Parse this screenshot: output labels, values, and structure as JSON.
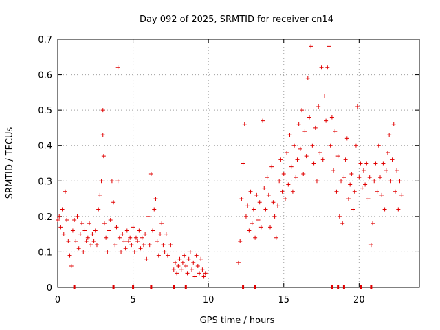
{
  "chart_data": {
    "type": "scatter",
    "title": "Day 092 of 2025, SRMTID for receiver cn14",
    "xlabel": "GPS time / hours",
    "ylabel": "SRMTID / TECUs",
    "xlim": [
      0,
      24
    ],
    "ylim": [
      0,
      0.7
    ],
    "xticks": [
      0,
      5,
      10,
      15,
      20
    ],
    "yticks": [
      0,
      0.1,
      0.2,
      0.3,
      0.4,
      0.5,
      0.6,
      0.7
    ],
    "xtick_labels": [
      "0",
      "5",
      "10",
      "15",
      "20"
    ],
    "ytick_labels": [
      "0",
      "0.1",
      "0.2",
      "0.3",
      "0.4",
      "0.5",
      "0.6",
      "0.7"
    ],
    "grid": true,
    "marker": "+",
    "color": "#e00000",
    "zero_markers_x": [
      1.1,
      3.7,
      5.0,
      6.2,
      7.7,
      8.5,
      12.3,
      13.1,
      18.2,
      18.6,
      19.0,
      20.1,
      20.8
    ],
    "series": [
      {
        "name": "SRMTID",
        "points": [
          [
            0.0,
            0.19
          ],
          [
            0.1,
            0.2
          ],
          [
            0.2,
            0.17
          ],
          [
            0.3,
            0.22
          ],
          [
            0.4,
            0.15
          ],
          [
            0.5,
            0.27
          ],
          [
            0.6,
            0.19
          ],
          [
            0.7,
            0.13
          ],
          [
            0.8,
            0.09
          ],
          [
            0.9,
            0.06
          ],
          [
            1.0,
            0.16
          ],
          [
            1.1,
            0.19
          ],
          [
            1.2,
            0.13
          ],
          [
            1.3,
            0.2
          ],
          [
            1.4,
            0.11
          ],
          [
            1.5,
            0.15
          ],
          [
            1.6,
            0.18
          ],
          [
            1.7,
            0.1
          ],
          [
            1.8,
            0.16
          ],
          [
            1.9,
            0.13
          ],
          [
            2.0,
            0.14
          ],
          [
            2.1,
            0.18
          ],
          [
            2.2,
            0.12
          ],
          [
            2.3,
            0.15
          ],
          [
            2.4,
            0.13
          ],
          [
            2.5,
            0.16
          ],
          [
            2.6,
            0.12
          ],
          [
            2.7,
            0.22
          ],
          [
            2.8,
            0.26
          ],
          [
            2.9,
            0.3
          ],
          [
            3.0,
            0.5
          ],
          [
            3.0,
            0.43
          ],
          [
            3.05,
            0.37
          ],
          [
            3.1,
            0.18
          ],
          [
            3.2,
            0.14
          ],
          [
            3.3,
            0.1
          ],
          [
            3.4,
            0.16
          ],
          [
            3.5,
            0.19
          ],
          [
            3.6,
            0.3
          ],
          [
            3.7,
            0.24
          ],
          [
            3.8,
            0.12
          ],
          [
            3.9,
            0.17
          ],
          [
            4.0,
            0.3
          ],
          [
            4.0,
            0.62
          ],
          [
            4.1,
            0.14
          ],
          [
            4.2,
            0.1
          ],
          [
            4.3,
            0.15
          ],
          [
            4.4,
            0.13
          ],
          [
            4.5,
            0.11
          ],
          [
            4.6,
            0.16
          ],
          [
            4.7,
            0.13
          ],
          [
            4.8,
            0.14
          ],
          [
            4.9,
            0.12
          ],
          [
            5.0,
            0.17
          ],
          [
            5.1,
            0.1
          ],
          [
            5.2,
            0.14
          ],
          [
            5.3,
            0.13
          ],
          [
            5.4,
            0.16
          ],
          [
            5.5,
            0.11
          ],
          [
            5.6,
            0.14
          ],
          [
            5.7,
            0.12
          ],
          [
            5.8,
            0.15
          ],
          [
            5.9,
            0.08
          ],
          [
            6.0,
            0.2
          ],
          [
            6.1,
            0.12
          ],
          [
            6.2,
            0.32
          ],
          [
            6.3,
            0.16
          ],
          [
            6.4,
            0.22
          ],
          [
            6.5,
            0.25
          ],
          [
            6.6,
            0.13
          ],
          [
            6.7,
            0.09
          ],
          [
            6.8,
            0.15
          ],
          [
            6.9,
            0.18
          ],
          [
            7.0,
            0.12
          ],
          [
            7.1,
            0.1
          ],
          [
            7.2,
            0.15
          ],
          [
            7.3,
            0.09
          ],
          [
            7.5,
            0.12
          ],
          [
            7.7,
            0.05
          ],
          [
            7.8,
            0.07
          ],
          [
            7.9,
            0.04
          ],
          [
            8.0,
            0.06
          ],
          [
            8.1,
            0.08
          ],
          [
            8.2,
            0.05
          ],
          [
            8.3,
            0.07
          ],
          [
            8.4,
            0.09
          ],
          [
            8.5,
            0.06
          ],
          [
            8.6,
            0.04
          ],
          [
            8.7,
            0.08
          ],
          [
            8.8,
            0.1
          ],
          [
            8.9,
            0.05
          ],
          [
            9.0,
            0.07
          ],
          [
            9.1,
            0.03
          ],
          [
            9.2,
            0.09
          ],
          [
            9.3,
            0.06
          ],
          [
            9.4,
            0.04
          ],
          [
            9.5,
            0.08
          ],
          [
            9.6,
            0.05
          ],
          [
            9.7,
            0.03
          ],
          [
            9.8,
            0.04
          ],
          [
            12.0,
            0.07
          ],
          [
            12.1,
            0.13
          ],
          [
            12.2,
            0.25
          ],
          [
            12.3,
            0.35
          ],
          [
            12.4,
            0.46
          ],
          [
            12.5,
            0.2
          ],
          [
            12.6,
            0.23
          ],
          [
            12.7,
            0.16
          ],
          [
            12.8,
            0.27
          ],
          [
            12.9,
            0.18
          ],
          [
            13.0,
            0.22
          ],
          [
            13.1,
            0.14
          ],
          [
            13.2,
            0.26
          ],
          [
            13.3,
            0.19
          ],
          [
            13.4,
            0.24
          ],
          [
            13.5,
            0.17
          ],
          [
            13.6,
            0.47
          ],
          [
            13.7,
            0.28
          ],
          [
            13.8,
            0.22
          ],
          [
            13.9,
            0.31
          ],
          [
            14.0,
            0.26
          ],
          [
            14.1,
            0.17
          ],
          [
            14.2,
            0.34
          ],
          [
            14.3,
            0.24
          ],
          [
            14.4,
            0.2
          ],
          [
            14.5,
            0.14
          ],
          [
            14.6,
            0.23
          ],
          [
            14.7,
            0.3
          ],
          [
            14.8,
            0.36
          ],
          [
            14.9,
            0.27
          ],
          [
            15.0,
            0.32
          ],
          [
            15.1,
            0.25
          ],
          [
            15.2,
            0.38
          ],
          [
            15.3,
            0.29
          ],
          [
            15.4,
            0.43
          ],
          [
            15.5,
            0.34
          ],
          [
            15.6,
            0.27
          ],
          [
            15.7,
            0.4
          ],
          [
            15.8,
            0.31
          ],
          [
            15.9,
            0.36
          ],
          [
            16.0,
            0.46
          ],
          [
            16.1,
            0.39
          ],
          [
            16.2,
            0.5
          ],
          [
            16.3,
            0.32
          ],
          [
            16.4,
            0.44
          ],
          [
            16.5,
            0.37
          ],
          [
            16.6,
            0.59
          ],
          [
            16.7,
            0.48
          ],
          [
            16.8,
            0.68
          ],
          [
            16.9,
            0.4
          ],
          [
            17.0,
            0.35
          ],
          [
            17.1,
            0.45
          ],
          [
            17.2,
            0.3
          ],
          [
            17.3,
            0.51
          ],
          [
            17.4,
            0.38
          ],
          [
            17.5,
            0.62
          ],
          [
            17.6,
            0.36
          ],
          [
            17.7,
            0.54
          ],
          [
            17.8,
            0.47
          ],
          [
            17.9,
            0.62
          ],
          [
            18.0,
            0.68
          ],
          [
            18.1,
            0.4
          ],
          [
            18.2,
            0.48
          ],
          [
            18.3,
            0.33
          ],
          [
            18.4,
            0.44
          ],
          [
            18.5,
            0.27
          ],
          [
            18.6,
            0.37
          ],
          [
            18.7,
            0.2
          ],
          [
            18.8,
            0.3
          ],
          [
            18.9,
            0.18
          ],
          [
            19.0,
            0.31
          ],
          [
            19.1,
            0.36
          ],
          [
            19.2,
            0.42
          ],
          [
            19.3,
            0.25
          ],
          [
            19.4,
            0.29
          ],
          [
            19.5,
            0.32
          ],
          [
            19.6,
            0.22
          ],
          [
            19.7,
            0.27
          ],
          [
            19.8,
            0.4
          ],
          [
            19.9,
            0.51
          ],
          [
            20.0,
            0.31
          ],
          [
            20.1,
            0.35
          ],
          [
            20.2,
            0.28
          ],
          [
            20.3,
            0.33
          ],
          [
            20.4,
            0.29
          ],
          [
            20.5,
            0.35
          ],
          [
            20.6,
            0.25
          ],
          [
            20.7,
            0.31
          ],
          [
            20.8,
            0.12
          ],
          [
            20.9,
            0.18
          ],
          [
            21.0,
            0.3
          ],
          [
            21.1,
            0.35
          ],
          [
            21.2,
            0.27
          ],
          [
            21.3,
            0.4
          ],
          [
            21.4,
            0.31
          ],
          [
            21.5,
            0.26
          ],
          [
            21.6,
            0.35
          ],
          [
            21.7,
            0.22
          ],
          [
            21.8,
            0.33
          ],
          [
            21.9,
            0.38
          ],
          [
            22.0,
            0.43
          ],
          [
            22.1,
            0.3
          ],
          [
            22.2,
            0.36
          ],
          [
            22.3,
            0.46
          ],
          [
            22.4,
            0.27
          ],
          [
            22.5,
            0.33
          ],
          [
            22.6,
            0.22
          ],
          [
            22.7,
            0.3
          ],
          [
            22.8,
            0.26
          ]
        ]
      }
    ]
  }
}
